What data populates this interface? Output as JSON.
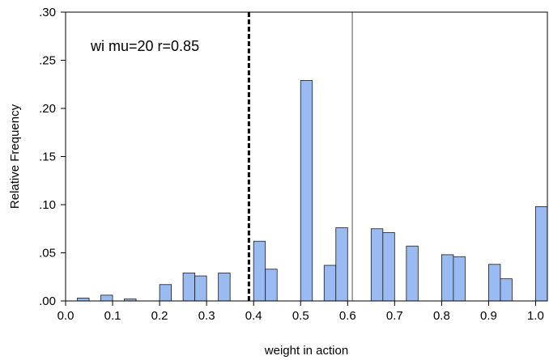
{
  "chart_data": {
    "type": "bar",
    "xlabel": "weight in action",
    "ylabel": "Relative Frequency",
    "annotation": "wi mu=20 r=0.85",
    "xlim": [
      0.0,
      1.025
    ],
    "ylim": [
      0.0,
      0.3
    ],
    "x_ticks": [
      0.0,
      0.1,
      0.2,
      0.3,
      0.4,
      0.5,
      0.6,
      0.7,
      0.8,
      0.9,
      1.0
    ],
    "x_tick_labels": [
      "0.0",
      "0.1",
      "0.2",
      "0.3",
      "0.4",
      "0.5",
      "0.6",
      "0.7",
      "0.8",
      "0.9",
      "1.0"
    ],
    "y_ticks": [
      0.0,
      0.05,
      0.1,
      0.15,
      0.2,
      0.25,
      0.3
    ],
    "y_tick_labels": [
      ".00",
      ".05",
      ".10",
      ".15",
      ".20",
      ".25",
      ".30"
    ],
    "grid": false,
    "bar_color": "#99BBF2",
    "bar_edge_color": "#1A1A1A",
    "bin_width": 0.025,
    "bars": [
      {
        "x_start": 0.025,
        "value": 0.003
      },
      {
        "x_start": 0.075,
        "value": 0.006
      },
      {
        "x_start": 0.125,
        "value": 0.002
      },
      {
        "x_start": 0.2,
        "value": 0.017
      },
      {
        "x_start": 0.25,
        "value": 0.029
      },
      {
        "x_start": 0.275,
        "value": 0.026
      },
      {
        "x_start": 0.325,
        "value": 0.029
      },
      {
        "x_start": 0.4,
        "value": 0.062
      },
      {
        "x_start": 0.425,
        "value": 0.033
      },
      {
        "x_start": 0.5,
        "value": 0.229
      },
      {
        "x_start": 0.55,
        "value": 0.037
      },
      {
        "x_start": 0.575,
        "value": 0.076
      },
      {
        "x_start": 0.65,
        "value": 0.075
      },
      {
        "x_start": 0.675,
        "value": 0.071
      },
      {
        "x_start": 0.725,
        "value": 0.057
      },
      {
        "x_start": 0.8,
        "value": 0.048
      },
      {
        "x_start": 0.825,
        "value": 0.046
      },
      {
        "x_start": 0.9,
        "value": 0.038
      },
      {
        "x_start": 0.925,
        "value": 0.023
      },
      {
        "x_start": 1.0,
        "value": 0.098
      }
    ],
    "reference_lines": [
      {
        "x": 0.39,
        "style": "dashed",
        "color": "#000000"
      },
      {
        "x": 0.61,
        "style": "solid",
        "color": "#555555"
      }
    ]
  }
}
